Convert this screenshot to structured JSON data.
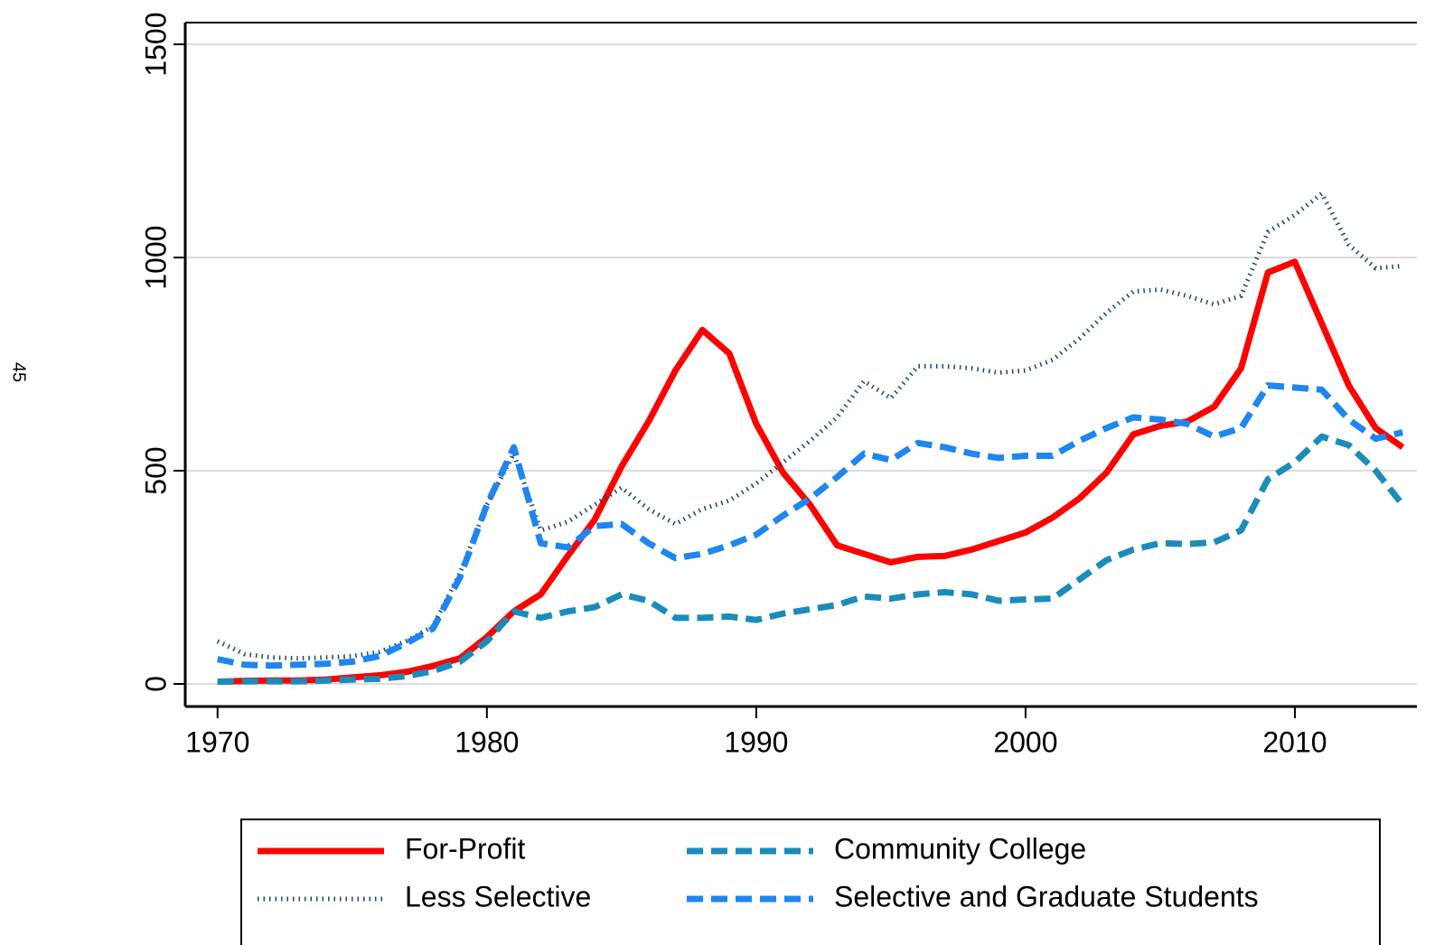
{
  "page_number": "45",
  "chart_data": {
    "type": "line",
    "x": [
      1970,
      1971,
      1972,
      1973,
      1974,
      1975,
      1976,
      1977,
      1978,
      1979,
      1980,
      1981,
      1982,
      1983,
      1984,
      1985,
      1986,
      1987,
      1988,
      1989,
      1990,
      1991,
      1992,
      1993,
      1994,
      1995,
      1996,
      1997,
      1998,
      1999,
      2000,
      2001,
      2002,
      2003,
      2004,
      2005,
      2006,
      2007,
      2008,
      2009,
      2010,
      2011,
      2012,
      2013,
      2014
    ],
    "xlim": [
      1968.8,
      2014.53
    ],
    "xticks": [
      1970,
      1980,
      1990,
      2000,
      2010
    ],
    "ylim": [
      -53,
      1551
    ],
    "yticks": [
      0,
      500,
      1000,
      1500
    ],
    "grid": true,
    "series": [
      {
        "name": "For-Profit",
        "color": "#ff0000",
        "style": "solid",
        "values": [
          5,
          7,
          8,
          8,
          10,
          15,
          20,
          28,
          42,
          60,
          110,
          170,
          210,
          300,
          385,
          510,
          615,
          735,
          830,
          775,
          610,
          495,
          420,
          325,
          305,
          285,
          298,
          300,
          315,
          335,
          355,
          390,
          435,
          495,
          585,
          605,
          615,
          650,
          740,
          965,
          990,
          845,
          700,
          600,
          555
        ]
      },
      {
        "name": "Less Selective",
        "color": "#1a476f",
        "style": "dot",
        "values": [
          100,
          70,
          62,
          60,
          62,
          65,
          75,
          100,
          135,
          260,
          420,
          540,
          360,
          380,
          420,
          460,
          410,
          375,
          410,
          430,
          470,
          520,
          570,
          625,
          710,
          670,
          745,
          745,
          740,
          730,
          735,
          760,
          810,
          870,
          920,
          925,
          910,
          890,
          910,
          1060,
          1100,
          1150,
          1030,
          975,
          980
        ]
      },
      {
        "name": "Community College",
        "color": "#1a8cba",
        "style": "dash",
        "values": [
          5,
          6,
          6,
          6,
          8,
          10,
          12,
          18,
          30,
          52,
          100,
          170,
          155,
          170,
          180,
          210,
          195,
          155,
          155,
          158,
          150,
          165,
          175,
          185,
          205,
          200,
          210,
          215,
          210,
          195,
          198,
          200,
          245,
          290,
          315,
          330,
          328,
          332,
          360,
          480,
          520,
          580,
          560,
          500,
          420
        ]
      },
      {
        "name": "Selective and Graduate Students",
        "color": "#1e86f0",
        "style": "dash",
        "values": [
          58,
          45,
          43,
          45,
          47,
          52,
          65,
          95,
          130,
          250,
          420,
          555,
          330,
          320,
          370,
          375,
          330,
          295,
          305,
          325,
          350,
          395,
          435,
          485,
          540,
          525,
          565,
          555,
          540,
          530,
          535,
          535,
          570,
          600,
          625,
          620,
          610,
          580,
          600,
          700,
          695,
          690,
          620,
          575,
          590
        ]
      }
    ],
    "legend": "bottom"
  }
}
